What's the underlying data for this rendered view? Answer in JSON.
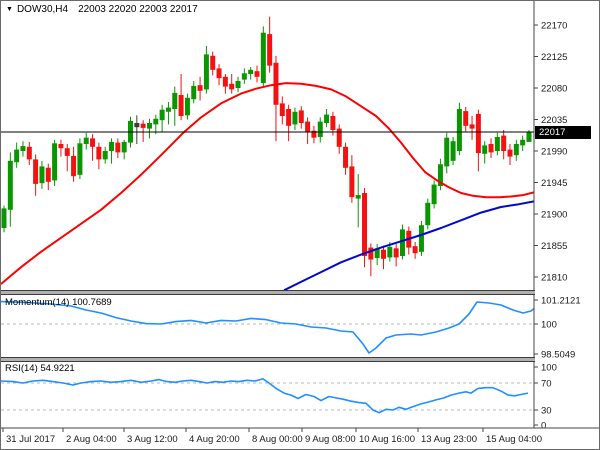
{
  "title": {
    "marker": "▼",
    "symbol": "DOW30,H4",
    "ohlc": "22003 22020 22003 22017"
  },
  "colors": {
    "bull": "#0a9600",
    "bear": "#f21212",
    "black_bar": "#3c3c3c",
    "ma_red": "#ff0000",
    "ma_blue": "#0008cc",
    "indicator_line": "#1e90ff",
    "level_dash": "#b8b8b8",
    "bid_line": "#000000",
    "axis_text": "#1a1a1a",
    "tag_bg": "#000000",
    "tag_text": "#ffffff",
    "border": "#555555",
    "separator": "#b0b0b0"
  },
  "chart_data": [
    {
      "type": "candlestick",
      "title": "DOW30,H4",
      "ylim": [
        21810,
        22170
      ],
      "y_ticks": [
        22170,
        22125,
        22080,
        22035,
        21990,
        21945,
        21900,
        21855,
        21810
      ],
      "last_price": 22017,
      "last_price_label": "22017",
      "x0": 3,
      "dx": 6.325,
      "black_bars": [
        21
      ],
      "ohlc": [
        [
          21880,
          21912,
          21874,
          21908
        ],
        [
          21906,
          21988,
          21882,
          21976
        ],
        [
          21974,
          22002,
          21966,
          21992
        ],
        [
          21990,
          22004,
          21982,
          21997
        ],
        [
          21996,
          22003,
          21970,
          21978
        ],
        [
          21978,
          21985,
          21926,
          21943
        ],
        [
          21944,
          21976,
          21936,
          21968
        ],
        [
          21966,
          21972,
          21934,
          21946
        ],
        [
          21948,
          22006,
          21940,
          22001
        ],
        [
          22000,
          22006,
          21982,
          21994
        ],
        [
          21994,
          22000,
          21961,
          21983
        ],
        [
          21983,
          21996,
          21946,
          21954
        ],
        [
          21956,
          22008,
          21950,
          22001
        ],
        [
          22000,
          22016,
          21992,
          22009
        ],
        [
          22008,
          22014,
          21976,
          21996
        ],
        [
          21996,
          22002,
          21964,
          21978
        ],
        [
          21978,
          21996,
          21972,
          21990
        ],
        [
          21990,
          22008,
          21972,
          22003
        ],
        [
          22002,
          22008,
          21980,
          21988
        ],
        [
          21988,
          22006,
          21978,
          22003
        ],
        [
          22002,
          22039,
          21995,
          22033
        ],
        [
          22024,
          22041,
          22000,
          22030
        ],
        [
          22029,
          22034,
          22003,
          22023
        ],
        [
          22022,
          22036,
          22008,
          22030
        ],
        [
          22028,
          22042,
          22014,
          22036
        ],
        [
          22034,
          22056,
          22017,
          22049
        ],
        [
          22046,
          22060,
          22028,
          22052
        ],
        [
          22050,
          22082,
          22026,
          22073
        ],
        [
          22070,
          22100,
          22034,
          22040
        ],
        [
          22041,
          22072,
          22035,
          22066
        ],
        [
          22064,
          22090,
          22058,
          22083
        ],
        [
          22084,
          22096,
          22062,
          22076
        ],
        [
          22078,
          22140,
          22072,
          22128
        ],
        [
          22126,
          22132,
          22098,
          22106
        ],
        [
          22108,
          22114,
          22084,
          22094
        ],
        [
          22096,
          22100,
          22072,
          22082
        ],
        [
          22086,
          22100,
          22072,
          22078
        ],
        [
          22080,
          22096,
          22074,
          22090
        ],
        [
          22092,
          22108,
          22086,
          22101
        ],
        [
          22100,
          22110,
          22092,
          22106
        ],
        [
          22104,
          22112,
          22088,
          22096
        ],
        [
          22087,
          22168,
          22082,
          22159
        ],
        [
          22157,
          22182,
          22102,
          22112
        ],
        [
          22116,
          22126,
          22004,
          22056
        ],
        [
          22058,
          22068,
          22028,
          22040
        ],
        [
          22050,
          22056,
          22004,
          22026
        ],
        [
          22028,
          22052,
          22020,
          22046
        ],
        [
          22048,
          22054,
          22022,
          22030
        ],
        [
          22032,
          22038,
          22000,
          22017
        ],
        [
          22019,
          22026,
          22001,
          22009
        ],
        [
          22010,
          22038,
          22002,
          22032
        ],
        [
          22030,
          22050,
          22024,
          22042
        ],
        [
          22040,
          22046,
          22012,
          22020
        ],
        [
          22022,
          22028,
          21986,
          21996
        ],
        [
          21996,
          22002,
          21956,
          21966
        ],
        [
          21968,
          21984,
          21916,
          21924
        ],
        [
          21922,
          21957,
          21881,
          21927
        ],
        [
          21930,
          21937,
          21824,
          21840
        ],
        [
          21852,
          21858,
          21811,
          21835
        ],
        [
          21837,
          21857,
          21827,
          21851
        ],
        [
          21849,
          21855,
          21821,
          21836
        ],
        [
          21838,
          21860,
          21832,
          21853
        ],
        [
          21851,
          21857,
          21825,
          21838
        ],
        [
          21840,
          21885,
          21835,
          21878
        ],
        [
          21876,
          21882,
          21842,
          21852
        ],
        [
          21854,
          21860,
          21836,
          21844
        ],
        [
          21846,
          21890,
          21840,
          21884
        ],
        [
          21884,
          21922,
          21878,
          21916
        ],
        [
          21914,
          21948,
          21908,
          21942
        ],
        [
          21940,
          21979,
          21934,
          21971
        ],
        [
          21968,
          22016,
          21958,
          22009
        ],
        [
          21976,
          22010,
          21970,
          22004
        ],
        [
          21990,
          22059,
          21984,
          22050
        ],
        [
          22047,
          22053,
          22018,
          22026
        ],
        [
          22028,
          22040,
          22006,
          22022
        ],
        [
          22043,
          22049,
          21961,
          21987
        ],
        [
          21986,
          22004,
          21972,
          21998
        ],
        [
          22000,
          22008,
          21980,
          21988
        ],
        [
          21990,
          22016,
          21984,
          22010
        ],
        [
          22012,
          22020,
          21978,
          21990
        ],
        [
          21992,
          22000,
          21970,
          21982
        ],
        [
          21984,
          22006,
          21976,
          22000
        ],
        [
          21998,
          22012,
          21990,
          22006
        ],
        [
          22003,
          22020,
          22003,
          22017
        ]
      ],
      "overlays": [
        {
          "name": "ma-red",
          "color": "#ff0000",
          "points": [
            [
              0,
              21800
            ],
            [
              20,
              21824
            ],
            [
              40,
              21846
            ],
            [
              60,
              21866
            ],
            [
              80,
              21886
            ],
            [
              100,
              21906
            ],
            [
              120,
              21930
            ],
            [
              140,
              21956
            ],
            [
              160,
              21984
            ],
            [
              183,
              22017
            ],
            [
              200,
              22038
            ],
            [
              220,
              22058
            ],
            [
              240,
              22072
            ],
            [
              255,
              22079
            ],
            [
              270,
              22084
            ],
            [
              285,
              22087
            ],
            [
              300,
              22086
            ],
            [
              315,
              22083
            ],
            [
              330,
              22078
            ],
            [
              345,
              22068
            ],
            [
              360,
              22054
            ],
            [
              375,
              22040
            ],
            [
              388,
              22022
            ],
            [
              400,
              22002
            ],
            [
              412,
              21980
            ],
            [
              424,
              21960
            ],
            [
              436,
              21948
            ],
            [
              448,
              21938
            ],
            [
              460,
              21930
            ],
            [
              472,
              21926
            ],
            [
              485,
              21924
            ],
            [
              498,
              21924
            ],
            [
              510,
              21925
            ],
            [
              522,
              21927
            ],
            [
              533,
              21931
            ]
          ]
        },
        {
          "name": "ma-blue",
          "color": "#0008cc",
          "points": [
            [
              283,
              21791
            ],
            [
              300,
              21803
            ],
            [
              320,
              21817
            ],
            [
              340,
              21831
            ],
            [
              360,
              21842
            ],
            [
              380,
              21852
            ],
            [
              400,
              21861
            ],
            [
              420,
              21870
            ],
            [
              440,
              21880
            ],
            [
              460,
              21891
            ],
            [
              480,
              21902
            ],
            [
              500,
              21910
            ],
            [
              518,
              21914
            ],
            [
              533,
              21918
            ]
          ]
        }
      ],
      "x_axis": {
        "tick_x": [
          2,
          62,
          123,
          185,
          248,
          301,
          355,
          417,
          482
        ],
        "labels": [
          "31 Jul 2017",
          "2 Aug 04:00",
          "3 Aug 12:00",
          "4 Aug 20:00",
          "8 Aug 00:00",
          "9 Aug 08:00",
          "10 Aug 16:00",
          "13 Aug 23:00",
          "15 Aug 04:00"
        ]
      }
    },
    {
      "type": "line",
      "name": "Momentum(14)",
      "value_label": "100.7689",
      "levels": [
        100
      ],
      "y_labels": [
        {
          "v": 101.2121,
          "text": "101.2121"
        },
        {
          "v": 100,
          "text": "100"
        },
        {
          "v": 98.5049,
          "text": "98.5049"
        }
      ],
      "points": [
        [
          0,
          101.12
        ],
        [
          25,
          101.08
        ],
        [
          50,
          101.0
        ],
        [
          70,
          100.9
        ],
        [
          85,
          100.7
        ],
        [
          100,
          100.55
        ],
        [
          115,
          100.32
        ],
        [
          130,
          100.15
        ],
        [
          145,
          100.02
        ],
        [
          160,
          100.0
        ],
        [
          175,
          100.12
        ],
        [
          190,
          100.18
        ],
        [
          205,
          100.05
        ],
        [
          220,
          100.18
        ],
        [
          235,
          100.15
        ],
        [
          250,
          100.28
        ],
        [
          265,
          100.22
        ],
        [
          280,
          100.05
        ],
        [
          295,
          100.0
        ],
        [
          310,
          99.85
        ],
        [
          325,
          99.8
        ],
        [
          340,
          99.65
        ],
        [
          352,
          99.6
        ],
        [
          362,
          99.0
        ],
        [
          368,
          98.55
        ],
        [
          375,
          98.8
        ],
        [
          385,
          99.3
        ],
        [
          395,
          99.45
        ],
        [
          410,
          99.5
        ],
        [
          420,
          99.45
        ],
        [
          435,
          99.6
        ],
        [
          448,
          99.8
        ],
        [
          458,
          100.0
        ],
        [
          468,
          100.5
        ],
        [
          476,
          101.1
        ],
        [
          488,
          101.05
        ],
        [
          500,
          100.95
        ],
        [
          512,
          100.7
        ],
        [
          522,
          100.55
        ],
        [
          530,
          100.65
        ],
        [
          533,
          100.77
        ]
      ]
    },
    {
      "type": "line",
      "name": "RSI(14)",
      "value_label": "54.9221",
      "levels": [
        70,
        30
      ],
      "y_labels": [
        {
          "v": 100,
          "text": "100"
        },
        {
          "v": 70,
          "text": "70"
        },
        {
          "v": 30,
          "text": "30"
        },
        {
          "v": 0,
          "text": "0"
        }
      ],
      "points": [
        [
          0,
          73
        ],
        [
          12,
          72
        ],
        [
          22,
          70
        ],
        [
          32,
          73
        ],
        [
          42,
          74
        ],
        [
          52,
          72
        ],
        [
          62,
          70
        ],
        [
          72,
          67
        ],
        [
          80,
          70
        ],
        [
          90,
          72
        ],
        [
          100,
          73
        ],
        [
          110,
          71
        ],
        [
          120,
          72
        ],
        [
          130,
          74
        ],
        [
          140,
          71
        ],
        [
          150,
          73
        ],
        [
          158,
          75
        ],
        [
          166,
          72
        ],
        [
          174,
          71
        ],
        [
          182,
          73
        ],
        [
          190,
          74
        ],
        [
          198,
          72
        ],
        [
          206,
          70
        ],
        [
          214,
          72
        ],
        [
          222,
          71
        ],
        [
          230,
          73
        ],
        [
          238,
          72
        ],
        [
          246,
          74
        ],
        [
          254,
          73
        ],
        [
          262,
          76
        ],
        [
          268,
          70
        ],
        [
          275,
          62
        ],
        [
          283,
          55
        ],
        [
          290,
          52
        ],
        [
          297,
          47
        ],
        [
          305,
          53
        ],
        [
          313,
          50
        ],
        [
          320,
          44
        ],
        [
          328,
          50
        ],
        [
          335,
          48
        ],
        [
          342,
          46
        ],
        [
          350,
          43
        ],
        [
          358,
          41
        ],
        [
          365,
          40
        ],
        [
          372,
          30
        ],
        [
          378,
          26
        ],
        [
          385,
          31
        ],
        [
          392,
          30
        ],
        [
          398,
          34
        ],
        [
          405,
          31
        ],
        [
          412,
          35
        ],
        [
          420,
          39
        ],
        [
          428,
          42
        ],
        [
          435,
          45
        ],
        [
          443,
          48
        ],
        [
          450,
          52
        ],
        [
          458,
          55
        ],
        [
          465,
          57
        ],
        [
          470,
          55
        ],
        [
          477,
          62
        ],
        [
          485,
          63
        ],
        [
          492,
          63
        ],
        [
          500,
          58
        ],
        [
          507,
          52
        ],
        [
          514,
          51
        ],
        [
          520,
          53
        ],
        [
          527,
          55
        ]
      ]
    }
  ]
}
